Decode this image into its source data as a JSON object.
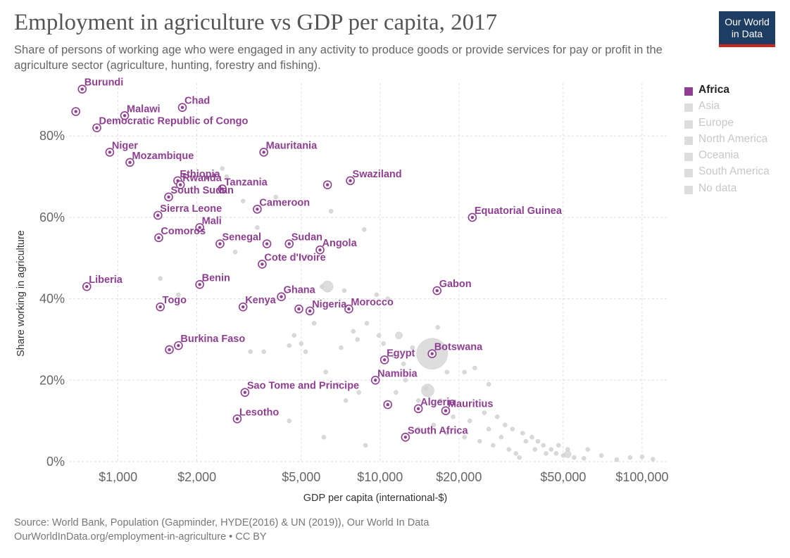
{
  "header": {
    "title": "Employment in agriculture vs GDP per capita, 2017",
    "subtitle": "Share of persons of working age who were engaged in any activity to produce goods or provide services for pay or profit in the agriculture sector (agriculture, hunting, forestry and fishing).",
    "logo_line1": "Our World",
    "logo_line2": "in Data"
  },
  "legend": [
    {
      "label": "Africa",
      "active": true
    },
    {
      "label": "Asia",
      "active": false
    },
    {
      "label": "Europe",
      "active": false
    },
    {
      "label": "North America",
      "active": false
    },
    {
      "label": "Oceania",
      "active": false
    },
    {
      "label": "South America",
      "active": false
    },
    {
      "label": "No data",
      "active": false
    }
  ],
  "footer": {
    "source": "Source: World Bank, Population (Gapminder, HYDE(2016) & UN (2019)), Our World In Data",
    "link": "OurWorldInData.org/employment-in-agriculture • CC BY"
  },
  "colors": {
    "africa": "#8e3f91",
    "other": "#c8c8c8",
    "grid": "#dddddd"
  },
  "chart_data": {
    "type": "scatter",
    "title": "Employment in agriculture vs GDP per capita, 2017",
    "xlabel": "GDP per capita (international-$)",
    "ylabel": "Share working in agriculture",
    "x_scale": "log",
    "xlim": [
      650,
      125000
    ],
    "ylim": [
      0,
      93
    ],
    "grid": true,
    "legend_position": "right",
    "x_ticks": [
      {
        "value": 1000,
        "label": "$1,000"
      },
      {
        "value": 2000,
        "label": "$2,000"
      },
      {
        "value": 5000,
        "label": "$5,000"
      },
      {
        "value": 10000,
        "label": "$10,000"
      },
      {
        "value": 20000,
        "label": "$20,000"
      },
      {
        "value": 50000,
        "label": "$50,000"
      },
      {
        "value": 100000,
        "label": "$100,000"
      }
    ],
    "y_ticks": [
      {
        "value": 0,
        "label": "0%"
      },
      {
        "value": 20,
        "label": "20%"
      },
      {
        "value": 40,
        "label": "40%"
      },
      {
        "value": 60,
        "label": "60%"
      },
      {
        "value": 80,
        "label": "80%"
      }
    ],
    "africa": [
      {
        "name": "",
        "x": 690,
        "y": 86
      },
      {
        "name": "Burundi",
        "x": 730,
        "y": 91.5
      },
      {
        "name": "Malawi",
        "x": 1060,
        "y": 85
      },
      {
        "name": "Democratic Republic of Congo",
        "x": 830,
        "y": 82
      },
      {
        "name": "Chad",
        "x": 1760,
        "y": 87
      },
      {
        "name": "Niger",
        "x": 930,
        "y": 76
      },
      {
        "name": "Mozambique",
        "x": 1110,
        "y": 73.5
      },
      {
        "name": "Mauritania",
        "x": 3600,
        "y": 76
      },
      {
        "name": "Swaziland",
        "x": 7700,
        "y": 69
      },
      {
        "name": "",
        "x": 6300,
        "y": 68
      },
      {
        "name": "Ethiopia",
        "x": 1690,
        "y": 69
      },
      {
        "name": "Rwanda",
        "x": 1730,
        "y": 68
      },
      {
        "name": "Tanzania",
        "x": 2500,
        "y": 67
      },
      {
        "name": "South Sudan",
        "x": 1560,
        "y": 65
      },
      {
        "name": "Cameroon",
        "x": 3400,
        "y": 62
      },
      {
        "name": "Sierra Leone",
        "x": 1420,
        "y": 60.5
      },
      {
        "name": "Equatorial Guinea",
        "x": 22500,
        "y": 60
      },
      {
        "name": "Mali",
        "x": 2050,
        "y": 57.5
      },
      {
        "name": "Comoros",
        "x": 1430,
        "y": 55
      },
      {
        "name": "Senegal",
        "x": 2450,
        "y": 53.5
      },
      {
        "name": "",
        "x": 3700,
        "y": 53.5
      },
      {
        "name": "Sudan",
        "x": 4500,
        "y": 53.5
      },
      {
        "name": "Angola",
        "x": 5900,
        "y": 52
      },
      {
        "name": "Cote d'Ivoire",
        "x": 3550,
        "y": 48.5
      },
      {
        "name": "Liberia",
        "x": 760,
        "y": 43
      },
      {
        "name": "Benin",
        "x": 2050,
        "y": 43.5
      },
      {
        "name": "Gabon",
        "x": 16500,
        "y": 42
      },
      {
        "name": "Ghana",
        "x": 4200,
        "y": 40.5
      },
      {
        "name": "Togo",
        "x": 1450,
        "y": 38
      },
      {
        "name": "Kenya",
        "x": 3000,
        "y": 38
      },
      {
        "name": "",
        "x": 4900,
        "y": 37.5
      },
      {
        "name": "Nigeria",
        "x": 5400,
        "y": 37
      },
      {
        "name": "Morocco",
        "x": 7600,
        "y": 37.5
      },
      {
        "name": "Burkina Faso",
        "x": 1700,
        "y": 28.5
      },
      {
        "name": "",
        "x": 1570,
        "y": 27.5
      },
      {
        "name": "Botswana",
        "x": 15800,
        "y": 26.5
      },
      {
        "name": "Egypt",
        "x": 10400,
        "y": 25
      },
      {
        "name": "Namibia",
        "x": 9600,
        "y": 20
      },
      {
        "name": "Sao Tome and Principe",
        "x": 3050,
        "y": 17
      },
      {
        "name": "",
        "x": 10700,
        "y": 14
      },
      {
        "name": "Algeria",
        "x": 14000,
        "y": 13
      },
      {
        "name": "Mauritius",
        "x": 17800,
        "y": 12.5
      },
      {
        "name": "Lesotho",
        "x": 2850,
        "y": 10.5
      },
      {
        "name": "South Africa",
        "x": 12500,
        "y": 6
      }
    ],
    "other": [
      [
        2500,
        72
      ],
      [
        2600,
        70
      ],
      [
        3000,
        64
      ],
      [
        4000,
        65
      ],
      [
        6500,
        61.5
      ],
      [
        8700,
        57
      ],
      [
        3400,
        57.5
      ],
      [
        2800,
        51.5
      ],
      [
        5300,
        50.5
      ],
      [
        6000,
        43
      ],
      [
        7300,
        42
      ],
      [
        9700,
        41
      ],
      [
        10700,
        40
      ],
      [
        1450,
        45
      ],
      [
        1700,
        41
      ],
      [
        4700,
        31
      ],
      [
        5000,
        29
      ],
      [
        4500,
        28.5
      ],
      [
        5200,
        27
      ],
      [
        5600,
        34
      ],
      [
        7100,
        28
      ],
      [
        7900,
        32
      ],
      [
        8200,
        30
      ],
      [
        8900,
        34
      ],
      [
        9900,
        31
      ],
      [
        10300,
        29
      ],
      [
        11300,
        26
      ],
      [
        12300,
        24
      ],
      [
        13300,
        28
      ],
      [
        16600,
        33
      ],
      [
        18000,
        22
      ],
      [
        21000,
        22
      ],
      [
        23000,
        23
      ],
      [
        26000,
        19
      ],
      [
        3200,
        27
      ],
      [
        3600,
        27
      ],
      [
        6200,
        22
      ],
      [
        6900,
        19
      ],
      [
        8300,
        17
      ],
      [
        7400,
        15
      ],
      [
        6100,
        6
      ],
      [
        4500,
        10
      ],
      [
        8800,
        4
      ],
      [
        11500,
        17
      ],
      [
        12500,
        20
      ],
      [
        14000,
        15
      ],
      [
        15000,
        18
      ],
      [
        17000,
        15
      ],
      [
        19000,
        11
      ],
      [
        22000,
        10
      ],
      [
        25000,
        12
      ],
      [
        28000,
        11
      ],
      [
        30000,
        9
      ],
      [
        32000,
        8
      ],
      [
        35000,
        7
      ],
      [
        38000,
        6
      ],
      [
        40000,
        5
      ],
      [
        42000,
        4
      ],
      [
        45000,
        3
      ],
      [
        47000,
        2
      ],
      [
        50000,
        1.5
      ],
      [
        55000,
        1
      ],
      [
        60000,
        0.8
      ],
      [
        70000,
        1.5
      ],
      [
        80000,
        0.5
      ],
      [
        90000,
        1
      ],
      [
        100000,
        1.2
      ],
      [
        110000,
        0.6
      ],
      [
        62000,
        3
      ],
      [
        48000,
        4
      ],
      [
        36000,
        5
      ],
      [
        33000,
        2
      ],
      [
        27000,
        4
      ],
      [
        24000,
        5
      ],
      [
        21000,
        6
      ],
      [
        18000,
        7
      ],
      [
        16000,
        9
      ],
      [
        14000,
        8
      ],
      [
        26000,
        8
      ],
      [
        29000,
        6
      ],
      [
        31000,
        3
      ],
      [
        43000,
        2
      ],
      [
        52000,
        3
      ],
      [
        39000,
        3
      ],
      [
        34000,
        1
      ]
    ],
    "other_large": [
      [
        15800,
        26.5,
        22
      ],
      [
        15200,
        17.5,
        9
      ],
      [
        6300,
        43,
        8
      ],
      [
        11800,
        31,
        5
      ],
      [
        52000,
        1.8,
        5
      ]
    ]
  }
}
